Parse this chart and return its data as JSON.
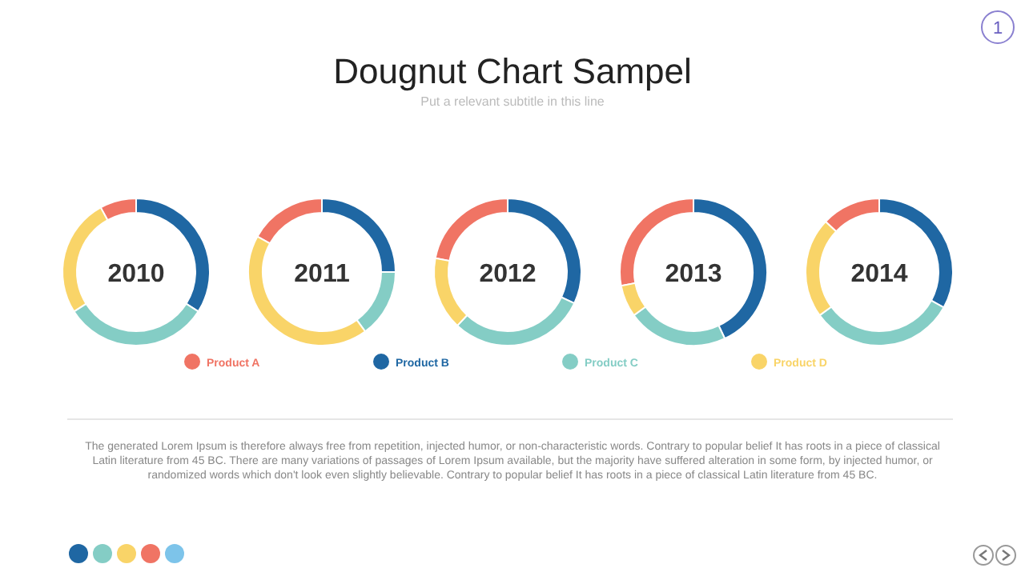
{
  "chart_data": [
    {
      "type": "other",
      "title": "Dougnut Chart Sampel",
      "subtitle": "Put a relevant subtitle in this line",
      "annotations": [
        "1",
        "The generated Lorem Ipsum is therefore always free from repetition, injected humor, or non-characteristic words. Contrary to popular belief It has roots in a piece of classical Latin literature from 45 BC. There are many variations of passages of Lorem Ipsum available, but the majority have suffered alteration in some form, by injected humor, or randomized words which don't look even slightly believable. Contrary to popular belief It has roots in a piece of classical Latin literature from 45 BC."
      ]
    },
    {
      "type": "donut",
      "title": "2010",
      "categories": [
        "Product A",
        "Product B",
        "Product C",
        "Product D"
      ],
      "values": [
        8,
        34,
        32,
        26
      ],
      "colors": [
        "#f07464",
        "#1f67a3",
        "#84cdc5",
        "#f9d468"
      ],
      "legend": "bottom"
    },
    {
      "type": "donut",
      "title": "2011",
      "values": [
        17,
        25,
        15,
        43
      ],
      "colors": [
        "#f07464",
        "#1f67a3",
        "#84cdc5",
        "#f9d468"
      ]
    },
    {
      "type": "donut",
      "title": "2012",
      "values": [
        22,
        32,
        30,
        16
      ],
      "colors": [
        "#f07464",
        "#1f67a3",
        "#84cdc5",
        "#f9d468"
      ]
    },
    {
      "type": "donut",
      "title": "2013",
      "values": [
        28,
        43,
        22,
        7
      ],
      "colors": [
        "#f07464",
        "#1f67a3",
        "#84cdc5",
        "#f9d468"
      ]
    },
    {
      "type": "donut",
      "title": "2014",
      "values": [
        13,
        33,
        32,
        22
      ],
      "colors": [
        "#f07464",
        "#1f67a3",
        "#84cdc5",
        "#f9d468"
      ]
    }
  ]
}
